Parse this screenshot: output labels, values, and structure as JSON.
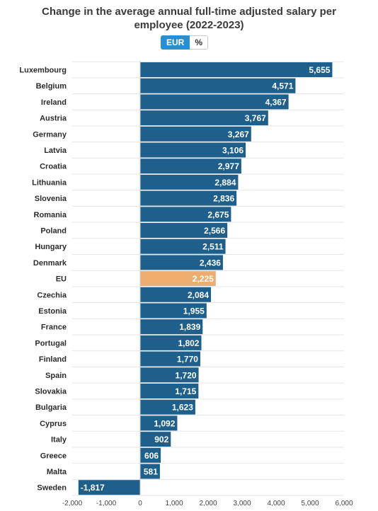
{
  "header": {
    "title_line1": "Change in the average annual full-time adjusted salary per",
    "title_line2": "employee (2022-2023)"
  },
  "toggle": {
    "options": [
      "EUR",
      "%"
    ],
    "selected": "EUR"
  },
  "colors": {
    "bar": "#1f5f8b",
    "highlight": "#eeac6f",
    "toggle_active": "#2a8fd0",
    "grid": "#e6e6e6"
  },
  "chart_data": {
    "type": "bar",
    "orientation": "horizontal",
    "categories": [
      "Luxembourg",
      "Belgium",
      "Ireland",
      "Austria",
      "Germany",
      "Latvia",
      "Croatia",
      "Lithuania",
      "Slovenia",
      "Romania",
      "Poland",
      "Hungary",
      "Denmark",
      "EU",
      "Czechia",
      "Estonia",
      "France",
      "Portugal",
      "Finland",
      "Spain",
      "Slovakia",
      "Bulgaria",
      "Cyprus",
      "Italy",
      "Greece",
      "Malta",
      "Sweden"
    ],
    "values": [
      5655,
      4571,
      4367,
      3767,
      3267,
      3106,
      2977,
      2884,
      2836,
      2675,
      2566,
      2511,
      2436,
      2225,
      2084,
      1955,
      1839,
      1802,
      1770,
      1720,
      1715,
      1623,
      1092,
      902,
      606,
      581,
      -1817
    ],
    "value_labels": [
      "5,655",
      "4,571",
      "4,367",
      "3,767",
      "3,267",
      "3,106",
      "2,977",
      "2,884",
      "2,836",
      "2,675",
      "2,566",
      "2,511",
      "2,436",
      "2,225",
      "2,084",
      "1,955",
      "1,839",
      "1,802",
      "1,770",
      "1,720",
      "1,715",
      "1,623",
      "1,092",
      "902",
      "606",
      "581",
      "-1,817"
    ],
    "highlight_category": "EU",
    "xlim": [
      -2000,
      6000
    ],
    "xticks": [
      -2000,
      -1000,
      0,
      1000,
      2000,
      3000,
      4000,
      5000,
      6000
    ],
    "xtick_labels": [
      "-2,000",
      "-1,000",
      "0",
      "1,000",
      "2,000",
      "3,000",
      "4,000",
      "5,000",
      "6,000"
    ],
    "grid": true,
    "legend": "none"
  }
}
